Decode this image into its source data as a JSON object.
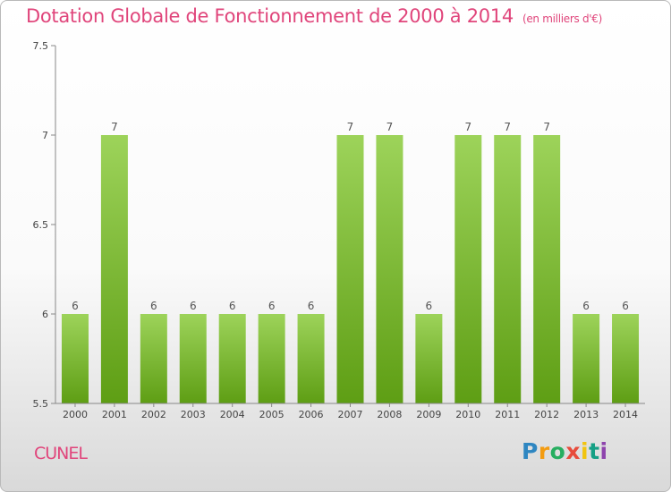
{
  "header": {
    "title": "Dotation Globale de Fonctionnement de 2000 à 2014",
    "unit": "(en milliers d'€)"
  },
  "footer": {
    "commune": "CUNEL",
    "logo_text": "Proxiti"
  },
  "colors": {
    "title": "#e0457b",
    "bar_top": "#9dd35a",
    "bar_bottom": "#5e9e14",
    "axis": "#888888",
    "label": "#555555"
  },
  "chart_data": {
    "type": "bar",
    "categories": [
      "2000",
      "2001",
      "2002",
      "2003",
      "2004",
      "2005",
      "2006",
      "2007",
      "2008",
      "2009",
      "2010",
      "2011",
      "2012",
      "2013",
      "2014"
    ],
    "values": [
      6,
      7,
      6,
      6,
      6,
      6,
      6,
      7,
      7,
      6,
      7,
      7,
      7,
      6,
      6
    ],
    "data_labels": [
      "6",
      "7",
      "6",
      "6",
      "6",
      "6",
      "6",
      "7",
      "7",
      "6",
      "7",
      "7",
      "7",
      "6",
      "6"
    ],
    "ylim": [
      5.5,
      7.5
    ],
    "yticks": [
      5.5,
      6,
      6.5,
      7,
      7.5
    ],
    "ytick_labels": [
      "5.5",
      "6",
      "6.5",
      "7",
      "7.5"
    ],
    "grid": false,
    "legend": "none"
  }
}
